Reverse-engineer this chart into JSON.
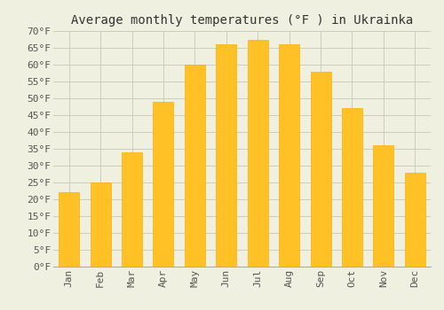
{
  "title": "Average monthly temperatures (°F ) in Ukrainka",
  "months": [
    "Jan",
    "Feb",
    "Mar",
    "Apr",
    "May",
    "Jun",
    "Jul",
    "Aug",
    "Sep",
    "Oct",
    "Nov",
    "Dec"
  ],
  "values": [
    22,
    25,
    34,
    49,
    60,
    66,
    67.5,
    66,
    58,
    47,
    36,
    28
  ],
  "bar_color": "#FFC125",
  "bar_edge_color": "#FFB000",
  "background_color": "#F0F0E0",
  "grid_color": "#CCCCBB",
  "ylim": [
    0,
    70
  ],
  "yticks": [
    0,
    5,
    10,
    15,
    20,
    25,
    30,
    35,
    40,
    45,
    50,
    55,
    60,
    65,
    70
  ],
  "ylabel_suffix": "°F",
  "title_fontsize": 10,
  "tick_fontsize": 8,
  "font_family": "monospace"
}
